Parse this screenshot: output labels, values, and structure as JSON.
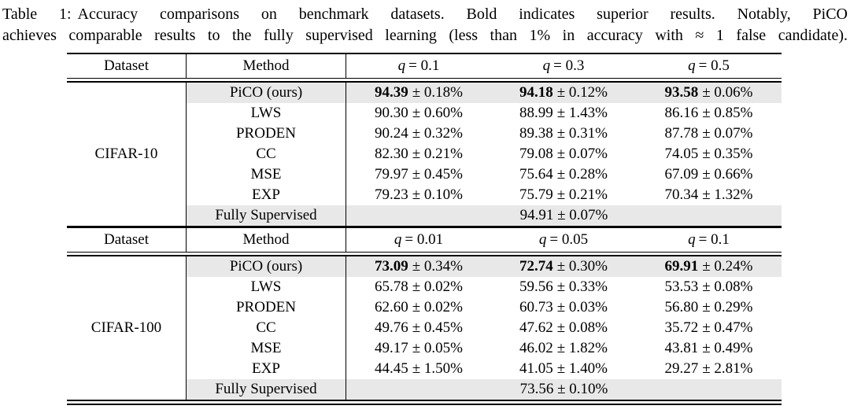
{
  "colors": {
    "highlight": "#e8e8e8",
    "rule": "#000000"
  },
  "caption": {
    "label": "Table 1:",
    "line1": "Accuracy comparisons on benchmark datasets.  Bold indicates superior results.  Notably, PiCO",
    "line2": "achieves comparable results to the fully supervised learning (less than 1% in accuracy with ≈ 1 false candidate)."
  },
  "table": {
    "columns": {
      "dataset": "Dataset",
      "method": "Method"
    },
    "sections": [
      {
        "dataset": "CIFAR-10",
        "q_headers": [
          {
            "sym": "q",
            "eq": "= 0.1"
          },
          {
            "sym": "q",
            "eq": "= 0.3"
          },
          {
            "sym": "q",
            "eq": "= 0.5"
          }
        ],
        "rows": [
          {
            "method": "PiCO (ours)",
            "highlight": true,
            "bold": true,
            "cells": [
              {
                "main": "94.39",
                "rest": "± 0.18%"
              },
              {
                "main": "94.18",
                "rest": "± 0.12%"
              },
              {
                "main": "93.58",
                "rest": "± 0.06%"
              }
            ]
          },
          {
            "method": "LWS",
            "highlight": false,
            "bold": false,
            "cells": [
              {
                "main": "90.30",
                "rest": "± 0.60%"
              },
              {
                "main": "88.99",
                "rest": "± 1.43%"
              },
              {
                "main": "86.16",
                "rest": "± 0.85%"
              }
            ]
          },
          {
            "method": "PRODEN",
            "highlight": false,
            "bold": false,
            "cells": [
              {
                "main": "90.24",
                "rest": "± 0.32%"
              },
              {
                "main": "89.38",
                "rest": "± 0.31%"
              },
              {
                "main": "87.78",
                "rest": "± 0.07%"
              }
            ]
          },
          {
            "method": "CC",
            "highlight": false,
            "bold": false,
            "cells": [
              {
                "main": "82.30",
                "rest": "± 0.21%"
              },
              {
                "main": "79.08",
                "rest": "± 0.07%"
              },
              {
                "main": "74.05",
                "rest": "± 0.35%"
              }
            ]
          },
          {
            "method": "MSE",
            "highlight": false,
            "bold": false,
            "cells": [
              {
                "main": "79.97",
                "rest": "± 0.45%"
              },
              {
                "main": "75.64",
                "rest": "± 0.28%"
              },
              {
                "main": "67.09",
                "rest": "± 0.66%"
              }
            ]
          },
          {
            "method": "EXP",
            "highlight": false,
            "bold": false,
            "cells": [
              {
                "main": "79.23",
                "rest": "± 0.10%"
              },
              {
                "main": "75.79",
                "rest": "± 0.21%"
              },
              {
                "main": "70.34",
                "rest": "± 1.32%"
              }
            ]
          }
        ],
        "summary_row": {
          "method": "Fully Supervised",
          "value": "94.91 ± 0.07%",
          "highlight": true
        }
      },
      {
        "dataset": "CIFAR-100",
        "q_headers": [
          {
            "sym": "q",
            "eq": "= 0.01"
          },
          {
            "sym": "q",
            "eq": "= 0.05"
          },
          {
            "sym": "q",
            "eq": "= 0.1"
          }
        ],
        "rows": [
          {
            "method": "PiCO (ours)",
            "highlight": true,
            "bold": true,
            "cells": [
              {
                "main": "73.09",
                "rest": "± 0.34%"
              },
              {
                "main": "72.74",
                "rest": "± 0.30%"
              },
              {
                "main": "69.91",
                "rest": "± 0.24%"
              }
            ]
          },
          {
            "method": "LWS",
            "highlight": false,
            "bold": false,
            "cells": [
              {
                "main": "65.78",
                "rest": "± 0.02%"
              },
              {
                "main": "59.56",
                "rest": "± 0.33%"
              },
              {
                "main": "53.53",
                "rest": "± 0.08%"
              }
            ]
          },
          {
            "method": "PRODEN",
            "highlight": false,
            "bold": false,
            "cells": [
              {
                "main": "62.60",
                "rest": "± 0.02%"
              },
              {
                "main": "60.73",
                "rest": "± 0.03%"
              },
              {
                "main": "56.80",
                "rest": "± 0.29%"
              }
            ]
          },
          {
            "method": "CC",
            "highlight": false,
            "bold": false,
            "cells": [
              {
                "main": "49.76",
                "rest": "± 0.45%"
              },
              {
                "main": "47.62",
                "rest": "± 0.08%"
              },
              {
                "main": "35.72",
                "rest": "± 0.47%"
              }
            ]
          },
          {
            "method": "MSE",
            "highlight": false,
            "bold": false,
            "cells": [
              {
                "main": "49.17",
                "rest": "± 0.05%"
              },
              {
                "main": "46.02",
                "rest": "± 1.82%"
              },
              {
                "main": "43.81",
                "rest": "± 0.49%"
              }
            ]
          },
          {
            "method": "EXP",
            "highlight": false,
            "bold": false,
            "cells": [
              {
                "main": "44.45",
                "rest": "± 1.50%"
              },
              {
                "main": "41.05",
                "rest": "± 1.40%"
              },
              {
                "main": "29.27",
                "rest": "± 2.81%"
              }
            ]
          }
        ],
        "summary_row": {
          "method": "Fully Supervised",
          "value": "73.56 ± 0.10%",
          "highlight": true
        }
      }
    ]
  }
}
